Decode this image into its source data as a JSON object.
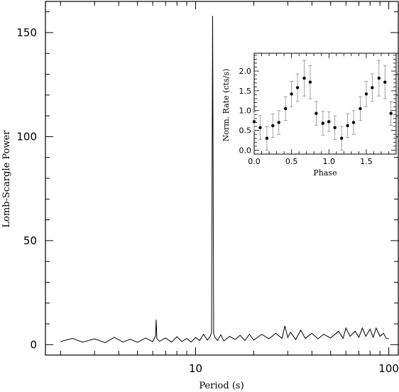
{
  "chart_data": [
    {
      "type": "line",
      "title": "",
      "xlabel": "Period (s)",
      "ylabel": "Lomb-Scargle Power",
      "xscale": "log",
      "xlim": [
        1.67,
        112
      ],
      "ylim": [
        -5,
        165
      ],
      "x_ticks": [
        10,
        100
      ],
      "x_tick_labels": [
        "10",
        "100"
      ],
      "y_ticks": [
        0,
        50,
        100,
        150
      ],
      "y_tick_labels": [
        "0",
        "50",
        "100",
        "150"
      ],
      "grid": false,
      "legend": "none",
      "line_color": "#000000",
      "series": [
        {
          "x": [
            2.0,
            2.3,
            2.6,
            3.0,
            3.4,
            3.8,
            4.2,
            4.6,
            5.0,
            5.5,
            6.0,
            6.2,
            6.25,
            6.3,
            6.5,
            7.0,
            7.5,
            8.0,
            8.5,
            9.0,
            9.5,
            10.0,
            10.5,
            11.0,
            11.5,
            11.9,
            12.1,
            12.25,
            12.4,
            12.6,
            13.0,
            13.5,
            14.0,
            15.0,
            16.0,
            17.0,
            18.0,
            19.0,
            20.0,
            22.0,
            24.0,
            26.0,
            28.0,
            29.0,
            30.0,
            31.0,
            33.0,
            35.0,
            37.0,
            40.0,
            43.0,
            46.0,
            50.0,
            55.0,
            58.0,
            60.0,
            63.0,
            67.0,
            70.0,
            73.0,
            76.0,
            80.0,
            83.0,
            86.0,
            90.0,
            94.0,
            97.0,
            100.0
          ],
          "y": [
            1.5,
            3.0,
            1.2,
            2.8,
            1.0,
            3.5,
            1.3,
            2.6,
            1.1,
            3.2,
            1.4,
            4.0,
            12.0,
            3.0,
            1.6,
            3.2,
            1.2,
            3.8,
            1.5,
            3.0,
            1.3,
            3.5,
            2.0,
            5.0,
            2.2,
            4.0,
            6.0,
            158.0,
            5.5,
            3.5,
            2.0,
            4.8,
            1.8,
            4.0,
            2.5,
            4.5,
            2.0,
            5.0,
            2.2,
            5.0,
            2.8,
            5.5,
            3.0,
            9.0,
            3.5,
            6.0,
            2.5,
            7.0,
            3.0,
            5.5,
            2.8,
            5.0,
            3.2,
            6.5,
            3.0,
            8.0,
            4.0,
            6.5,
            3.5,
            8.0,
            4.0,
            7.5,
            3.5,
            8.0,
            4.0,
            5.5,
            3.0,
            2.8
          ]
        }
      ]
    },
    {
      "type": "scatter",
      "title": "",
      "xlabel": "Phase",
      "ylabel": "Norm. Rate (cts/s)",
      "xlim": [
        0,
        1.9
      ],
      "ylim": [
        -0.1,
        2.45
      ],
      "x_ticks": [
        0,
        0.5,
        1,
        1.5
      ],
      "x_tick_labels": [
        "0.0",
        "0.5",
        "1.0",
        "1.5"
      ],
      "y_ticks": [
        0,
        0.5,
        1,
        1.5,
        2
      ],
      "y_tick_labels": [
        "0.0",
        "0.5",
        "1.0",
        "1.5",
        "2.0"
      ],
      "grid": false,
      "legend": "none",
      "point_color": "#000000",
      "errorbar_color": "#999999",
      "series": [
        {
          "x": [
            0.0,
            0.08,
            0.17,
            0.25,
            0.33,
            0.42,
            0.5,
            0.58,
            0.67,
            0.75,
            0.83,
            0.92,
            1.0,
            1.08,
            1.17,
            1.25,
            1.33,
            1.42,
            1.5,
            1.58,
            1.67,
            1.75,
            1.83,
            1.92
          ],
          "y": [
            0.72,
            0.57,
            0.3,
            0.62,
            0.7,
            1.05,
            1.42,
            1.58,
            1.82,
            1.72,
            0.93,
            0.68,
            0.72,
            0.57,
            0.3,
            0.62,
            0.7,
            1.05,
            1.42,
            1.58,
            1.82,
            1.72,
            0.93,
            0.68
          ],
          "yerr": [
            0.25,
            0.3,
            0.3,
            0.3,
            0.3,
            0.3,
            0.32,
            0.35,
            0.45,
            0.42,
            0.3,
            0.3,
            0.25,
            0.3,
            0.3,
            0.3,
            0.3,
            0.3,
            0.32,
            0.35,
            0.45,
            0.42,
            0.3,
            0.3
          ]
        }
      ]
    }
  ]
}
